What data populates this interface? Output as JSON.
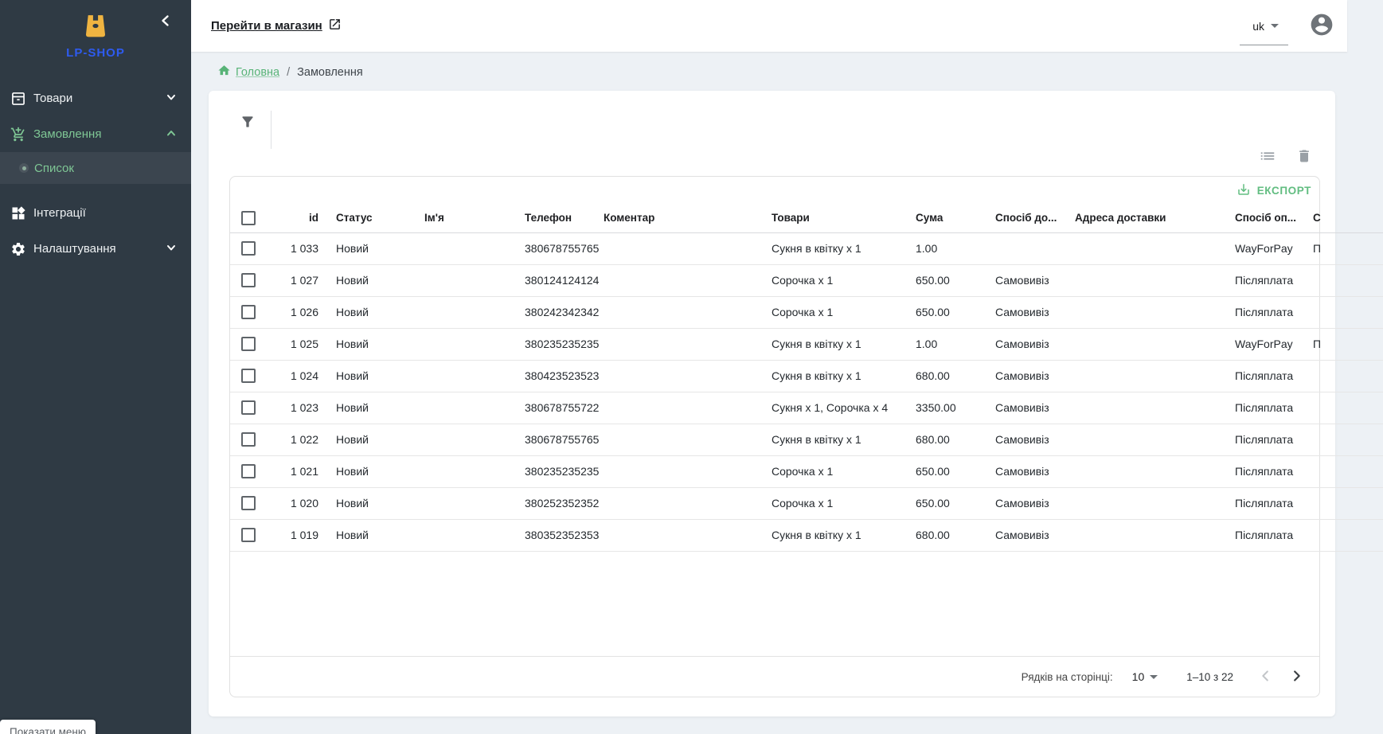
{
  "app": {
    "accent_green": "#5eba7d",
    "sidebar_green": "#7fc795",
    "sidebar_bg": "#2f3a44",
    "page_bg": "#edf1f5",
    "logo_yellow": "#f0b441",
    "logo_blue": "#2e5bef"
  },
  "sidebar": {
    "logo_text": "LP-SHOP",
    "items": [
      {
        "label": "Товари",
        "icon": "box-icon",
        "expand": "down"
      },
      {
        "label": "Замовлення",
        "icon": "cart-plus-icon",
        "expand": "up",
        "active": true
      },
      {
        "label": "Список",
        "icon": "bullet-icon",
        "sub_item": true,
        "selected": true
      },
      {
        "label": "Інтеграції",
        "icon": "widgets-icon"
      },
      {
        "label": "Налаштування",
        "icon": "gear-icon",
        "expand": "down"
      }
    ]
  },
  "topbar": {
    "store_link_label": "Перейти в магазин",
    "language": "uk"
  },
  "breadcrumb": {
    "home_label": "Головна",
    "separator": "/",
    "current": "Замовлення"
  },
  "table_toolbar": {
    "export_label": "ЕКСПОРТ"
  },
  "table": {
    "columns": [
      {
        "key": "id",
        "label": "id"
      },
      {
        "key": "status",
        "label": "Статус"
      },
      {
        "key": "name",
        "label": "Ім'я"
      },
      {
        "key": "phone",
        "label": "Телефон"
      },
      {
        "key": "comment",
        "label": "Коментар"
      },
      {
        "key": "products",
        "label": "Товари"
      },
      {
        "key": "sum",
        "label": "Сума"
      },
      {
        "key": "delivery",
        "label": "Спосіб до..."
      },
      {
        "key": "address",
        "label": "Адреса доставки"
      },
      {
        "key": "payment",
        "label": "Спосіб оп..."
      },
      {
        "key": "payment_status",
        "label": "С"
      }
    ],
    "rows": [
      {
        "id": "1 033",
        "status": "Новий",
        "name": "",
        "phone": "380678755765",
        "comment": "",
        "products": "Сукня в квітку x 1",
        "sum": "1.00",
        "delivery": "",
        "address": "",
        "payment": "WayForPay",
        "payment_status": "П"
      },
      {
        "id": "1 027",
        "status": "Новий",
        "name": "",
        "phone": "380124124124",
        "comment": "",
        "products": "Сорочка x 1",
        "sum": "650.00",
        "delivery": "Самовивіз",
        "address": "",
        "payment": "Післяплата",
        "payment_status": ""
      },
      {
        "id": "1 026",
        "status": "Новий",
        "name": "",
        "phone": "380242342342",
        "comment": "",
        "products": "Сорочка x 1",
        "sum": "650.00",
        "delivery": "Самовивіз",
        "address": "",
        "payment": "Післяплата",
        "payment_status": ""
      },
      {
        "id": "1 025",
        "status": "Новий",
        "name": "",
        "phone": "380235235235",
        "comment": "",
        "products": "Сукня в квітку x 1",
        "sum": "1.00",
        "delivery": "Самовивіз",
        "address": "",
        "payment": "WayForPay",
        "payment_status": "П"
      },
      {
        "id": "1 024",
        "status": "Новий",
        "name": "",
        "phone": "380423523523",
        "comment": "",
        "products": "Сукня в квітку x 1",
        "sum": "680.00",
        "delivery": "Самовивіз",
        "address": "",
        "payment": "Післяплата",
        "payment_status": ""
      },
      {
        "id": "1 023",
        "status": "Новий",
        "name": "",
        "phone": "380678755722",
        "comment": "",
        "products": "Сукня x 1, Сорочка x 4",
        "sum": "3350.00",
        "delivery": "Самовивіз",
        "address": "",
        "payment": "Післяплата",
        "payment_status": ""
      },
      {
        "id": "1 022",
        "status": "Новий",
        "name": "",
        "phone": "380678755765",
        "comment": "",
        "products": "Сукня в квітку x 1",
        "sum": "680.00",
        "delivery": "Самовивіз",
        "address": "",
        "payment": "Післяплата",
        "payment_status": ""
      },
      {
        "id": "1 021",
        "status": "Новий",
        "name": "",
        "phone": "380235235235",
        "comment": "",
        "products": "Сорочка x 1",
        "sum": "650.00",
        "delivery": "Самовивіз",
        "address": "",
        "payment": "Післяплата",
        "payment_status": ""
      },
      {
        "id": "1 020",
        "status": "Новий",
        "name": "",
        "phone": "380252352352",
        "comment": "",
        "products": "Сорочка x 1",
        "sum": "650.00",
        "delivery": "Самовивіз",
        "address": "",
        "payment": "Післяплата",
        "payment_status": ""
      },
      {
        "id": "1 019",
        "status": "Новий",
        "name": "",
        "phone": "380352352353",
        "comment": "",
        "products": "Сукня в квітку x 1",
        "sum": "680.00",
        "delivery": "Самовивіз",
        "address": "",
        "payment": "Післяплата",
        "payment_status": ""
      }
    ]
  },
  "pagination": {
    "rows_per_page_label": "Рядків на сторінці:",
    "rows_per_page_value": "10",
    "range_label": "1–10 з 22"
  },
  "tooltip": {
    "label": "Показати меню"
  }
}
